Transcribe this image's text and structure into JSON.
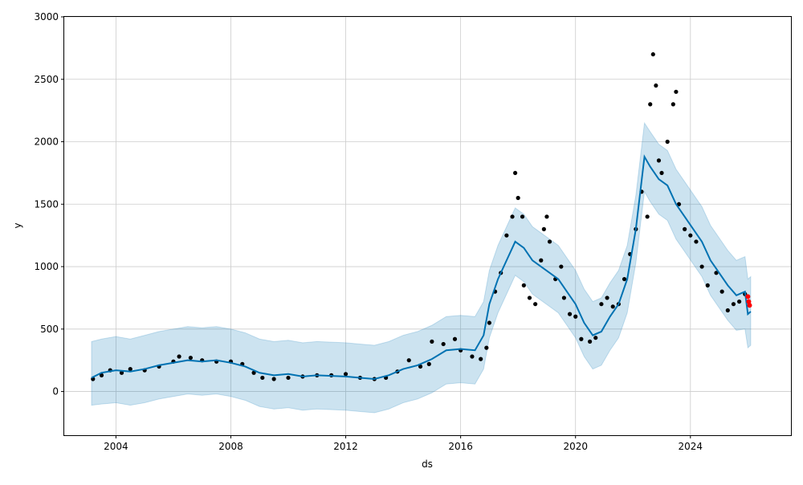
{
  "chart_data": {
    "type": "line",
    "title": "",
    "xlabel": "ds",
    "ylabel": "y",
    "xlim": [
      2002.2,
      2027.5
    ],
    "ylim": [
      -350,
      3000
    ],
    "x_ticks": [
      "2004",
      "2008",
      "2012",
      "2016",
      "2020",
      "2024"
    ],
    "y_ticks": [
      "0",
      "500",
      "1000",
      "1500",
      "2000",
      "2500",
      "3000"
    ],
    "grid": true,
    "colors": {
      "forecast": "#0072B2",
      "band": "#0072B2",
      "actual": "#000000",
      "recent": "#ff0000"
    },
    "forecast": {
      "x": [
        2003.15,
        2003.5,
        2004,
        2004.5,
        2005,
        2005.5,
        2006,
        2006.5,
        2007,
        2007.5,
        2008,
        2008.5,
        2009,
        2009.5,
        2010,
        2010.5,
        2011,
        2011.5,
        2012,
        2012.5,
        2013,
        2013.5,
        2014,
        2014.5,
        2015,
        2015.5,
        2016,
        2016.5,
        2016.8,
        2017,
        2017.3,
        2017.6,
        2017.9,
        2018.2,
        2018.5,
        2018.8,
        2019.1,
        2019.4,
        2019.7,
        2020,
        2020.3,
        2020.6,
        2020.9,
        2021.2,
        2021.5,
        2021.8,
        2022.1,
        2022.4,
        2022.6,
        2022.9,
        2023.2,
        2023.5,
        2023.8,
        2024.1,
        2024.4,
        2024.7,
        2025,
        2025.3,
        2025.6,
        2025.9,
        2026.0,
        2026.1
      ],
      "yhat": [
        110,
        150,
        170,
        160,
        180,
        210,
        230,
        250,
        240,
        250,
        230,
        200,
        150,
        130,
        140,
        120,
        130,
        125,
        120,
        110,
        100,
        130,
        180,
        210,
        260,
        330,
        340,
        330,
        450,
        700,
        900,
        1050,
        1200,
        1150,
        1050,
        1000,
        950,
        900,
        800,
        700,
        550,
        450,
        480,
        600,
        700,
        900,
        1300,
        1880,
        1800,
        1700,
        1650,
        1500,
        1400,
        1300,
        1200,
        1050,
        950,
        850,
        770,
        800,
        620,
        640
      ],
      "yhat_lower": [
        -110,
        -100,
        -90,
        -110,
        -90,
        -60,
        -40,
        -20,
        -30,
        -20,
        -40,
        -70,
        -120,
        -140,
        -130,
        -150,
        -140,
        -145,
        -150,
        -160,
        -170,
        -140,
        -90,
        -60,
        -10,
        60,
        70,
        60,
        180,
        430,
        630,
        780,
        930,
        880,
        780,
        730,
        680,
        630,
        530,
        430,
        280,
        180,
        210,
        330,
        430,
        630,
        1030,
        1600,
        1520,
        1420,
        1370,
        1220,
        1120,
        1020,
        920,
        770,
        670,
        570,
        490,
        500,
        350,
        370
      ],
      "yhat_upper": [
        400,
        420,
        440,
        420,
        450,
        480,
        500,
        520,
        510,
        520,
        500,
        470,
        420,
        400,
        410,
        390,
        400,
        395,
        390,
        380,
        370,
        400,
        450,
        480,
        530,
        600,
        610,
        600,
        720,
        970,
        1170,
        1320,
        1470,
        1420,
        1320,
        1270,
        1220,
        1170,
        1070,
        970,
        820,
        720,
        750,
        870,
        970,
        1170,
        1570,
        2150,
        2080,
        1980,
        1930,
        1780,
        1680,
        1580,
        1480,
        1330,
        1230,
        1130,
        1050,
        1080,
        900,
        920
      ]
    },
    "actual": {
      "x": [
        2003.2,
        2003.5,
        2003.8,
        2004.2,
        2004.5,
        2005,
        2005.5,
        2006,
        2006.2,
        2006.6,
        2007,
        2007.5,
        2008,
        2008.4,
        2008.8,
        2009.1,
        2009.5,
        2010,
        2010.5,
        2011,
        2011.5,
        2012,
        2012.5,
        2013,
        2013.4,
        2013.8,
        2014.2,
        2014.6,
        2014.9,
        2015,
        2015.4,
        2015.8,
        2016,
        2016.4,
        2016.7,
        2016.9,
        2017,
        2017.2,
        2017.4,
        2017.6,
        2017.8,
        2017.9,
        2018,
        2018.15,
        2018.2,
        2018.4,
        2018.6,
        2018.8,
        2018.9,
        2019,
        2019.1,
        2019.3,
        2019.5,
        2019.6,
        2019.8,
        2020,
        2020.2,
        2020.5,
        2020.7,
        2020.9,
        2021.1,
        2021.3,
        2021.5,
        2021.7,
        2021.9,
        2022.1,
        2022.3,
        2022.5,
        2022.6,
        2022.7,
        2022.8,
        2022.9,
        2023,
        2023.2,
        2023.4,
        2023.5,
        2023.6,
        2023.8,
        2024,
        2024.2,
        2024.4,
        2024.6,
        2024.9,
        2025.1,
        2025.3,
        2025.5,
        2025.7,
        2025.9
      ],
      "y": [
        100,
        130,
        170,
        150,
        180,
        170,
        200,
        240,
        280,
        270,
        250,
        240,
        240,
        220,
        150,
        110,
        100,
        110,
        120,
        130,
        130,
        140,
        110,
        100,
        110,
        160,
        250,
        200,
        220,
        400,
        380,
        420,
        330,
        280,
        260,
        350,
        550,
        800,
        950,
        1250,
        1400,
        1750,
        1550,
        1400,
        850,
        750,
        700,
        1050,
        1300,
        1400,
        1200,
        900,
        1000,
        750,
        620,
        600,
        420,
        400,
        430,
        700,
        750,
        680,
        700,
        900,
        1100,
        1300,
        1600,
        1400,
        2300,
        2700,
        2450,
        1850,
        1750,
        2000,
        2300,
        2400,
        1500,
        1300,
        1250,
        1200,
        1000,
        850,
        950,
        800,
        650,
        700,
        720,
        780
      ]
    },
    "recent": {
      "x": [
        2026.0,
        2026.03,
        2026.06
      ],
      "y": [
        760,
        720,
        690
      ]
    }
  }
}
